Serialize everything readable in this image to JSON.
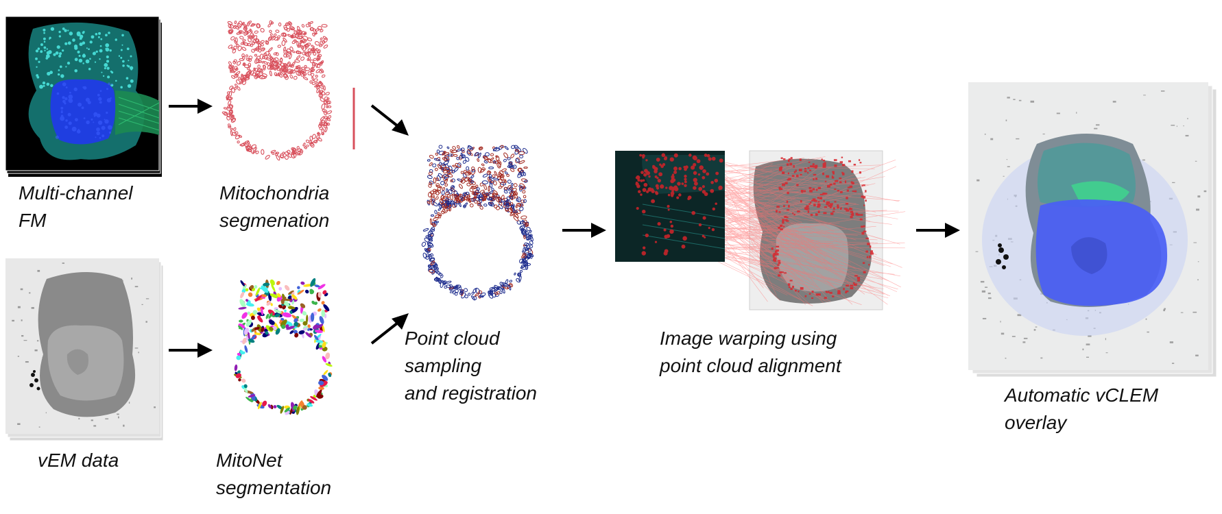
{
  "captions": {
    "fm": [
      "Multi-channel",
      "FM"
    ],
    "mito_seg": [
      "Mitochondria",
      "segmenation"
    ],
    "vem": [
      "vEM data"
    ],
    "mitonet": [
      "MitoNet",
      "segmentation"
    ],
    "point_cloud": [
      "Point cloud",
      "sampling",
      "and registration"
    ],
    "warping": [
      "Image warping using",
      "point cloud alignment"
    ],
    "overlay": [
      "Automatic vCLEM",
      "overlay"
    ]
  },
  "colors": {
    "fm_background": "#000000",
    "fm_cyan": "#3fd6d2",
    "fm_nucleus_blue": "#1f3ee0",
    "fm_green": "#2aa86a",
    "mito_red": "#d8505c",
    "em_gray": "#8a8a8a",
    "em_background": "#e6e6e6",
    "cloud_blue": "#1b2a8c",
    "cloud_red": "#a2281e",
    "match_line_red": "#ff6f6f",
    "overlay_blue": "#4a5ef5",
    "overlay_green": "#3be38a",
    "arrow": "#000000"
  }
}
